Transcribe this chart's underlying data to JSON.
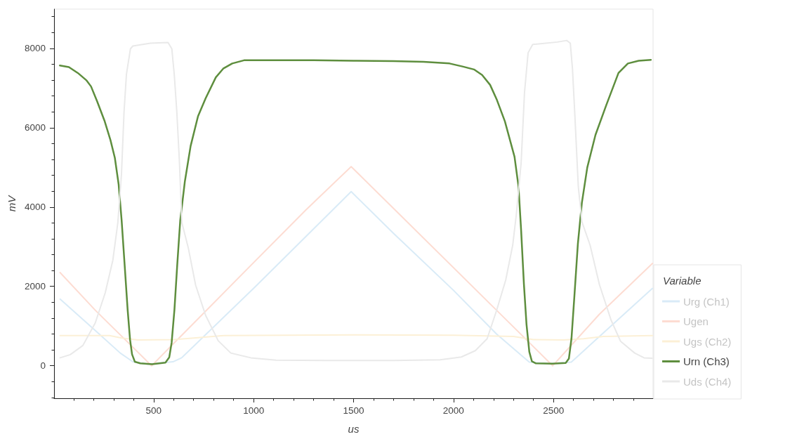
{
  "chart_data": {
    "type": "line",
    "xlabel": "us",
    "ylabel": "mV",
    "legend_title": "Variable",
    "legend": "bottom right",
    "grid": false,
    "marker": "none",
    "line_style": "solid",
    "xlim": [
      2,
      2998
    ],
    "xticks": [
      {
        "value": 100,
        "label": null
      },
      {
        "value": 200,
        "label": null
      },
      {
        "value": 300,
        "label": null
      },
      {
        "value": 400,
        "label": null
      },
      500,
      {
        "value": 600,
        "label": null
      },
      {
        "value": 700,
        "label": null
      },
      {
        "value": 800,
        "label": null
      },
      {
        "value": 900,
        "label": null
      },
      1000,
      {
        "value": 1100,
        "label": null
      },
      {
        "value": 1200,
        "label": null
      },
      {
        "value": 1300,
        "label": null
      },
      {
        "value": 1400,
        "label": null
      },
      1500,
      {
        "value": 1600,
        "label": null
      },
      {
        "value": 1700,
        "label": null
      },
      {
        "value": 1800,
        "label": null
      },
      {
        "value": 1900,
        "label": null
      },
      2000,
      {
        "value": 2100,
        "label": null
      },
      {
        "value": 2200,
        "label": null
      },
      {
        "value": 2300,
        "label": null
      },
      {
        "value": 2400,
        "label": null
      },
      2500,
      {
        "value": 2600,
        "label": null
      },
      {
        "value": 2700,
        "label": null
      },
      {
        "value": 2800,
        "label": null
      },
      {
        "value": 2900,
        "label": null
      }
    ],
    "ylim": [
      -820,
      8990
    ],
    "yticks": [
      {
        "value": -800,
        "label": null
      },
      {
        "value": -400,
        "label": null
      },
      0,
      {
        "value": 400,
        "label": null
      },
      {
        "value": 800,
        "label": null
      },
      {
        "value": 1200,
        "label": null
      },
      {
        "value": 1600,
        "label": null
      },
      2000,
      {
        "value": 2400,
        "label": null
      },
      {
        "value": 2800,
        "label": null
      },
      {
        "value": 3200,
        "label": null
      },
      {
        "value": 3600,
        "label": null
      },
      4000,
      {
        "value": 4400,
        "label": null
      },
      {
        "value": 4800,
        "label": null
      },
      {
        "value": 5200,
        "label": null
      },
      {
        "value": 5600,
        "label": null
      },
      6000,
      {
        "value": 6400,
        "label": null
      },
      {
        "value": 6800,
        "label": null
      },
      {
        "value": 7200,
        "label": null
      },
      {
        "value": 7600,
        "label": null
      },
      8000,
      {
        "value": 8400,
        "label": null
      },
      {
        "value": 8800,
        "label": null
      }
    ],
    "series": [
      {
        "name": "Urg (Ch1)",
        "color": "#d9ebf7",
        "x": [
          32,
          208,
          333,
          396,
          471,
          597,
          640,
          1000,
          1250,
          1488,
          1699,
          2000,
          2215,
          2379,
          2480,
          2589,
          2700,
          2995
        ],
        "values": [
          1680,
          890,
          320,
          100,
          40,
          100,
          200,
          1950,
          3200,
          4390,
          3340,
          1900,
          800,
          90,
          50,
          90,
          600,
          1950
        ]
      },
      {
        "name": "Ugen",
        "color": "#fddcd2",
        "x": [
          32,
          208,
          490,
          1000,
          1262,
          1488,
          1699,
          2215,
          2496,
          2730,
          2995
        ],
        "values": [
          2350,
          1400,
          0,
          2600,
          3930,
          5020,
          3970,
          1400,
          0,
          1300,
          2580
        ]
      },
      {
        "name": "Ugs (Ch2)",
        "color": "#fcf0d6",
        "x": [
          32,
          280,
          340,
          420,
          600,
          700,
          850,
          1500,
          2000,
          2300,
          2400,
          2550,
          2650,
          2750,
          2995
        ],
        "values": [
          760,
          760,
          700,
          650,
          660,
          700,
          760,
          780,
          770,
          740,
          660,
          650,
          680,
          740,
          760
        ]
      },
      {
        "name": "Urn (Ch3)",
        "color": "#5e8e3e",
        "x": [
          31,
          76,
          121,
          165,
          187,
          217,
          254,
          284,
          306,
          325,
          340,
          355,
          370,
          382,
          392,
          406,
          433,
          492,
          559,
          578,
          590,
          604,
          618,
          633,
          656,
          685,
          722,
          760,
          811,
          848,
          893,
          952,
          1094,
          1300,
          1500,
          1700,
          1850,
          1980,
          2048,
          2102,
          2143,
          2183,
          2217,
          2257,
          2305,
          2325,
          2338,
          2352,
          2365,
          2379,
          2392,
          2412,
          2494,
          2561,
          2577,
          2590,
          2604,
          2622,
          2642,
          2669,
          2710,
          2764,
          2825,
          2872,
          2926,
          2987
        ],
        "values": [
          7570,
          7530,
          7380,
          7190,
          7040,
          6670,
          6180,
          5690,
          5240,
          4570,
          3660,
          2540,
          1410,
          660,
          290,
          100,
          60,
          40,
          80,
          210,
          580,
          1410,
          2540,
          3660,
          4640,
          5540,
          6290,
          6740,
          7270,
          7490,
          7620,
          7700,
          7700,
          7700,
          7690,
          7680,
          7660,
          7620,
          7540,
          7470,
          7330,
          7080,
          6700,
          6160,
          5270,
          4520,
          3420,
          2060,
          1040,
          350,
          110,
          60,
          50,
          70,
          180,
          690,
          1720,
          3080,
          4110,
          5000,
          5820,
          6570,
          7380,
          7620,
          7690,
          7710
        ]
      },
      {
        "name": "Uds (Ch4)",
        "color": "#e9e9e9",
        "x": [
          32,
          83,
          146,
          208,
          258,
          296,
          321,
          339,
          352,
          364,
          384,
          396,
          484,
          572,
          591,
          603,
          616,
          629,
          641,
          673,
          710,
          760,
          823,
          886,
          986,
          1112,
          1363,
          1700,
          1933,
          2039,
          2109,
          2168,
          2215,
          2261,
          2296,
          2314,
          2338,
          2355,
          2373,
          2396,
          2519,
          2566,
          2584,
          2595,
          2607,
          2624,
          2642,
          2683,
          2730,
          2788,
          2835,
          2906,
          2953,
          2993
        ],
        "values": [
          200,
          280,
          510,
          1080,
          1840,
          2660,
          3610,
          4820,
          6400,
          7350,
          7990,
          8060,
          8130,
          8150,
          7990,
          7350,
          6400,
          5140,
          3610,
          2980,
          2030,
          1270,
          630,
          320,
          200,
          140,
          130,
          130,
          150,
          220,
          380,
          680,
          1390,
          2160,
          3040,
          3810,
          5110,
          6890,
          7890,
          8100,
          8160,
          8200,
          8130,
          7480,
          6300,
          4520,
          3630,
          3040,
          2040,
          1150,
          620,
          320,
          200,
          190
        ]
      }
    ]
  }
}
